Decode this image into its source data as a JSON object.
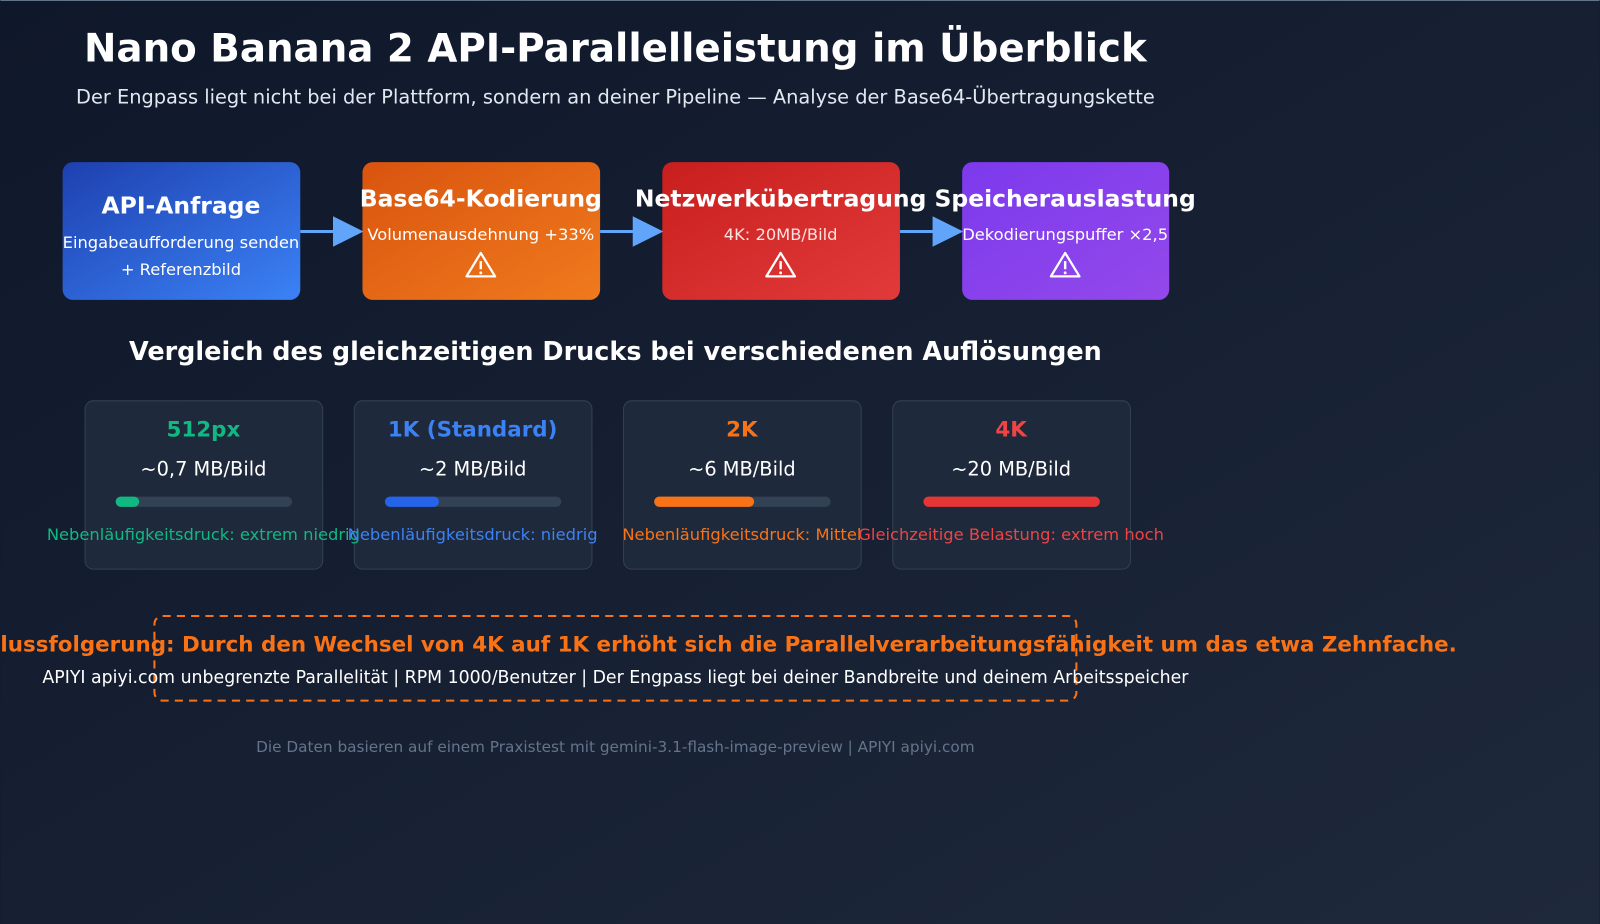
{
  "header": {
    "title": "Nano Banana 2 API-Parallelleistung im Überblick",
    "subtitle": "Der Engpass liegt nicht bei der Plattform, sondern an deiner Pipeline — Analyse der Base64-Übertragungskette"
  },
  "pipeline": [
    {
      "title": "API-Anfrage",
      "lines": [
        "Eingabeaufforderung senden",
        "+ Referenzbild"
      ]
    },
    {
      "title": "Base64-Kodierung",
      "lines": [
        "Volumenausdehnung +33%"
      ]
    },
    {
      "title": "Netzwerkübertragung",
      "lines": [
        "4K: 20MB/Bild"
      ]
    },
    {
      "title": "Speicherauslastung",
      "lines": [
        "Dekodierungspuffer ×2,5"
      ]
    }
  ],
  "comparison": {
    "title": "Vergleich des gleichzeitigen Drucks bei verschiedenen Auflösungen",
    "cards": [
      {
        "resolution": "512px",
        "size": "~0,7 MB/Bild",
        "pressure": "Nebenläufigkeitsdruck: extrem niedrig"
      },
      {
        "resolution": "1K (Standard)",
        "size": "~2 MB/Bild",
        "pressure": "Nebenläufigkeitsdruck: niedrig"
      },
      {
        "resolution": "2K",
        "size": "~6 MB/Bild",
        "pressure": "Nebenläufigkeitsdruck: Mittel"
      },
      {
        "resolution": "4K",
        "size": "~20 MB/Bild",
        "pressure": "Gleichzeitige Belastung: extrem hoch"
      }
    ]
  },
  "conclusion": {
    "headline": "lussfolgerung: Durch den Wechsel von 4K auf 1K erhöht sich die Parallelverarbeitungsfähigkeit um das etwa Zehnfache.",
    "detail": "APIYI apiyi.com unbegrenzte Parallelität | RPM 1000/Benutzer | Der Engpass liegt bei deiner Bandbreite und deinem Arbeitsspeicher"
  },
  "footer": "Die Daten basieren auf einem Praxistest mit gemini-3.1-flash-image-preview | APIYI apiyi.com"
}
